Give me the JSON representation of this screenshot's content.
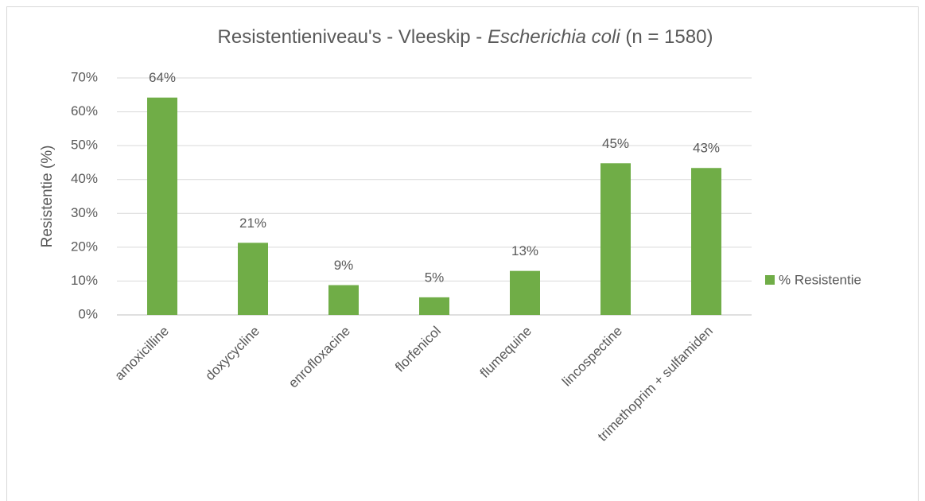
{
  "chart_data": {
    "type": "bar",
    "title": [
      "Resistentieniveau's - Vleeskip  - ",
      "Escherichia coli",
      " (n = 1580)"
    ],
    "y_label": "Resistentie (%)",
    "categories": [
      "amoxicilline",
      "doxycycline",
      "enrofloxacine",
      "florfenicol",
      "flumequine",
      "lincospectine",
      "trimethoprim + sulfamiden"
    ],
    "series": [
      {
        "name": "% Resistentie",
        "color": "#70ad47",
        "values": [
          64.2,
          21.3,
          8.8,
          5.2,
          13.0,
          44.8,
          43.4
        ],
        "value_labels": [
          "64%",
          "21%",
          "9%",
          "5%",
          "13%",
          "45%",
          "43%"
        ]
      }
    ],
    "ylim": [
      0,
      70
    ],
    "yticks": [
      {
        "value": 0,
        "label": "0%"
      },
      {
        "value": 10,
        "label": "10%"
      },
      {
        "value": 20,
        "label": "20%"
      },
      {
        "value": 30,
        "label": "30%"
      },
      {
        "value": 40,
        "label": "40%"
      },
      {
        "value": 50,
        "label": "50%"
      },
      {
        "value": 60,
        "label": "60%"
      },
      {
        "value": 70,
        "label": "70%"
      }
    ],
    "grid": true,
    "legend": "right"
  }
}
